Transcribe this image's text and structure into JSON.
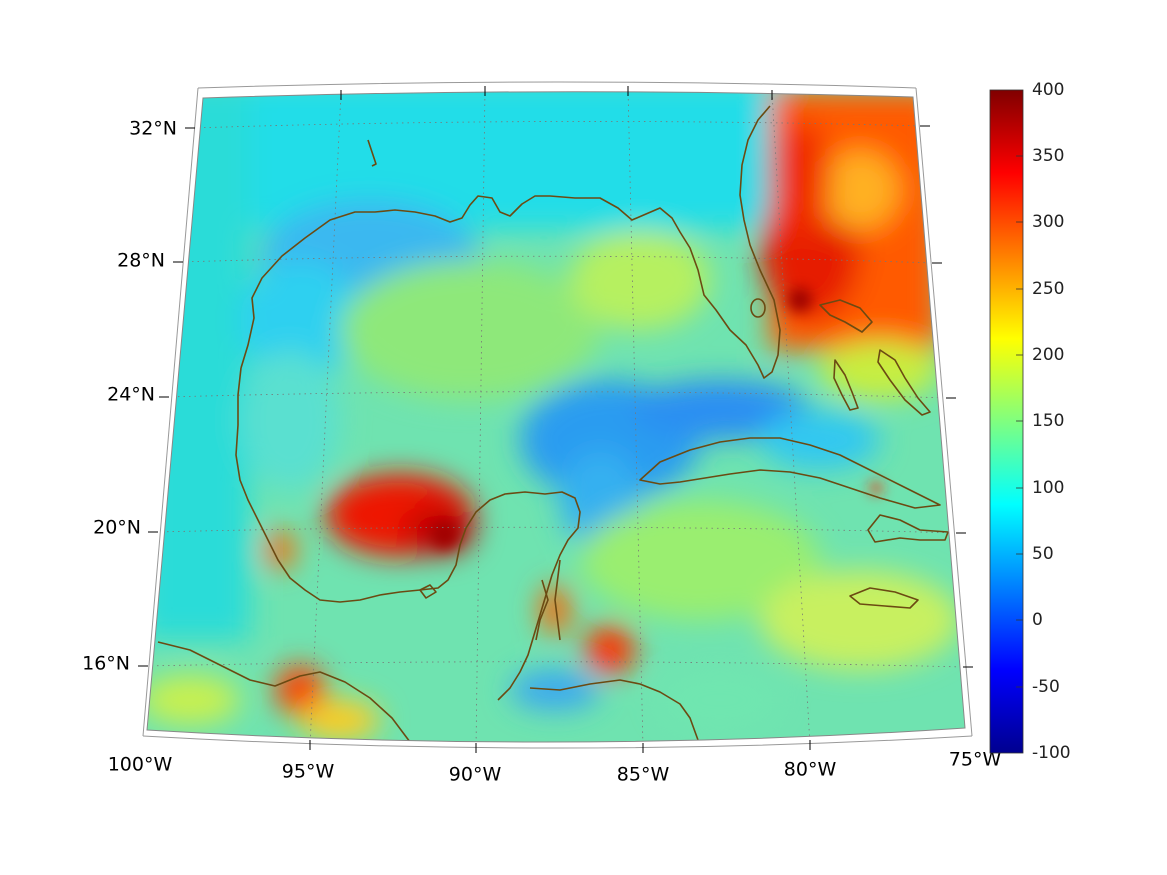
{
  "map": {
    "projection": "conic",
    "extent": {
      "lon": [
        -100,
        -75
      ],
      "lat": [
        14,
        33
      ]
    },
    "grid": true,
    "coastline_color": "#6b4a12",
    "lat_labels": [
      "32°N",
      "28°N",
      "24°N",
      "20°N",
      "16°N"
    ],
    "lon_labels": [
      "100°W",
      "95°W",
      "90°W",
      "85°W",
      "80°W",
      "75°W"
    ],
    "field_features": [
      {
        "feature": "Bay of Campeche maximum",
        "value": 350
      },
      {
        "feature": "Gulf Stream / Bahamas maximum",
        "value": 330
      },
      {
        "feature": "Gulf of Honduras maximum",
        "value": 300
      },
      {
        "feature": "Yucatan Channel / Florida Straits minimum",
        "value": 60
      }
    ]
  },
  "colorbar": {
    "colormap": "jet",
    "min": -100,
    "max": 400,
    "tick_labels": [
      "400",
      "350",
      "300",
      "250",
      "200",
      "150",
      "100",
      "50",
      "0",
      "-50",
      "-100"
    ]
  }
}
